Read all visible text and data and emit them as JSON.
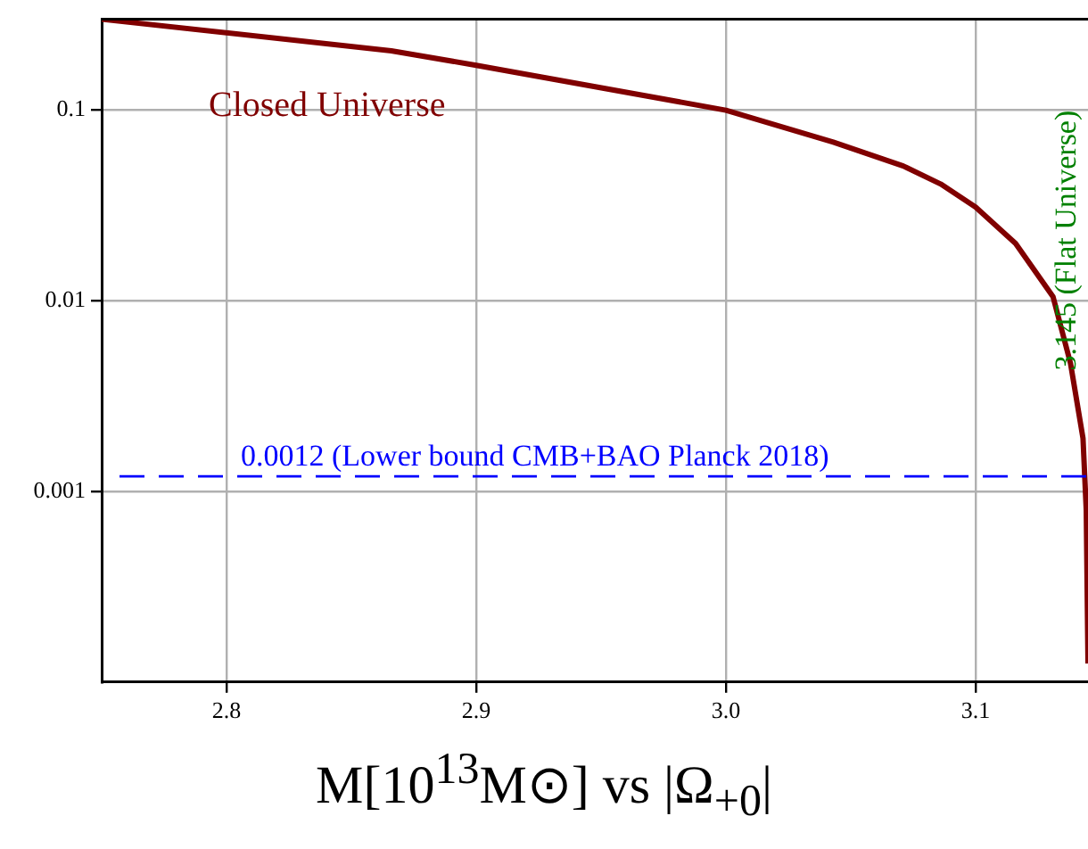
{
  "chart_data": {
    "type": "line",
    "xlabel": "M[10$^{13}$M⊙] vs |Ω$_{+0}$|",
    "x": [
      2.75,
      2.866,
      2.9,
      3.0,
      3.043,
      3.071,
      3.086,
      3.1,
      3.116,
      3.131,
      3.138,
      3.143,
      3.1443,
      3.145
    ],
    "series": [
      {
        "name": "Closed Universe",
        "color": "#800000",
        "values": [
          0.3,
          0.205,
          0.172,
          0.1,
          0.068,
          0.051,
          0.041,
          0.031,
          0.02,
          0.0105,
          0.0047,
          0.0019,
          0.0008,
          0.000125
        ]
      }
    ],
    "xlim": [
      2.75,
      3.145
    ],
    "xticks": [
      2.8,
      2.9,
      {
        "value": 3,
        "label": "3.0"
      },
      3.1
    ],
    "ylim": [
      0.0001,
      0.3
    ],
    "yticks": [
      0.001,
      0.01,
      0.1
    ],
    "log": "y",
    "grid": true,
    "legend": false,
    "marker": "none",
    "line_style": "solid",
    "ref_lines": [
      {
        "axis": "y",
        "value": 0.0012,
        "label": "0.0012 (Lower bound CMB+BAO Planck 2018)",
        "color": "#0000ff",
        "line_style": "dashed"
      }
    ],
    "annotations": [
      "3.145 (Flat Universe)"
    ]
  }
}
